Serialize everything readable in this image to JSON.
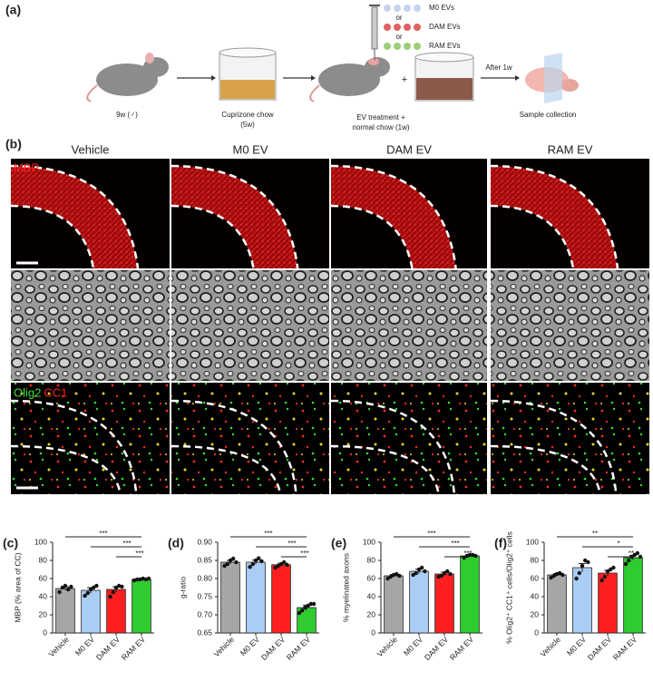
{
  "panel_a": {
    "label": "(a)",
    "ev_types": [
      "M0 EVs",
      "DAM EVs",
      "RAM EVs"
    ],
    "or": "or",
    "mouse": "9w (♂)",
    "chow": [
      "Cuprizone chow",
      "(5w)"
    ],
    "plus": "+",
    "treatment": [
      "EV treatment +",
      "normal chow (1w)"
    ],
    "interval": "After 1w",
    "collection": "Sample collection"
  },
  "panel_b": {
    "label": "(b)",
    "columns": [
      "Vehicle",
      "M0 EV",
      "DAM EV",
      "RAM EV"
    ],
    "mbp": "MBP",
    "olig2": "Olig2",
    "cc1": "CC1"
  },
  "chart_data": [
    {
      "type": "bar",
      "label": "(c)",
      "ylabel": "MBP (% area of CC)",
      "categories": [
        "Vehicle",
        "M0 EV",
        "DAM EV",
        "RAM EV"
      ],
      "colors": [
        "#a6a6a6",
        "#a9cdf5",
        "#ff1f1f",
        "#2ecc2e"
      ],
      "values": [
        49,
        47,
        48,
        59
      ],
      "errors": [
        2,
        3,
        3,
        0.6
      ],
      "points": [
        [
          45,
          50,
          52,
          48,
          51
        ],
        [
          41,
          44,
          48,
          50,
          52
        ],
        [
          40,
          45,
          50,
          52,
          51
        ],
        [
          58,
          59,
          59,
          60,
          59,
          60
        ]
      ],
      "ylim": [
        0,
        100
      ],
      "yticks": [
        0,
        20,
        40,
        60,
        80,
        100
      ],
      "comparisons": [
        {
          "groups": [
            "Vehicle",
            "RAM EV"
          ],
          "label": "***"
        },
        {
          "groups": [
            "M0 EV",
            "RAM EV"
          ],
          "label": "***"
        },
        {
          "groups": [
            "DAM EV",
            "RAM EV"
          ],
          "label": "***"
        }
      ]
    },
    {
      "type": "bar",
      "label": "(d)",
      "ylabel": "g-ratio",
      "categories": [
        "Vehicle",
        "M0 EV",
        "DAM EV",
        "RAM EV"
      ],
      "colors": [
        "#a6a6a6",
        "#a9cdf5",
        "#ff1f1f",
        "#2ecc2e"
      ],
      "values": [
        0.845,
        0.845,
        0.838,
        0.72
      ],
      "errors": [
        0.005,
        0.006,
        0.004,
        0.007
      ],
      "points": [
        [
          0.835,
          0.84,
          0.85,
          0.855,
          0.845
        ],
        [
          0.832,
          0.84,
          0.85,
          0.856,
          0.848
        ],
        [
          0.83,
          0.835,
          0.84,
          0.845,
          0.838
        ],
        [
          0.705,
          0.712,
          0.72,
          0.725,
          0.73,
          0.73
        ]
      ],
      "ylim": [
        0.65,
        0.9
      ],
      "yticks": [
        0.65,
        {
          "value": 0.7,
          "label": "0.70"
        },
        0.75,
        {
          "value": 0.8,
          "label": "0.80"
        },
        0.85,
        {
          "value": 0.9,
          "label": "0.90"
        }
      ],
      "comparisons": [
        {
          "groups": [
            "Vehicle",
            "RAM EV"
          ],
          "label": "***"
        },
        {
          "groups": [
            "M0 EV",
            "RAM EV"
          ],
          "label": "***"
        },
        {
          "groups": [
            "DAM EV",
            "RAM EV"
          ],
          "label": "***"
        }
      ]
    },
    {
      "type": "bar",
      "label": "(e)",
      "ylabel": "% myelinated axons",
      "categories": [
        "Vehicle",
        "M0 EV",
        "DAM EV",
        "RAM EV"
      ],
      "colors": [
        "#a6a6a6",
        "#a9cdf5",
        "#ff1f1f",
        "#2ecc2e"
      ],
      "values": [
        63,
        68,
        65,
        85
      ],
      "errors": [
        1.5,
        2.5,
        2,
        1
      ],
      "points": [
        [
          60,
          62,
          64,
          65,
          63
        ],
        [
          64,
          66,
          70,
          72,
          68
        ],
        [
          62,
          63,
          66,
          68,
          65
        ],
        [
          83,
          85,
          86,
          86,
          85
        ]
      ],
      "ylim": [
        0,
        100
      ],
      "yticks": [
        0,
        20,
        40,
        60,
        80,
        100
      ],
      "comparisons": [
        {
          "groups": [
            "Vehicle",
            "RAM EV"
          ],
          "label": "***"
        },
        {
          "groups": [
            "M0 EV",
            "RAM EV"
          ],
          "label": "***"
        },
        {
          "groups": [
            "DAM EV",
            "RAM EV"
          ],
          "label": "***"
        }
      ]
    },
    {
      "type": "bar",
      "label": "(f)",
      "ylabel": "% Olig2⁺ CC1⁺ cells/Olig2⁺ cells",
      "categories": [
        "Vehicle",
        "M0 EV",
        "DAM EV",
        "RAM EV"
      ],
      "colors": [
        "#a6a6a6",
        "#a9cdf5",
        "#ff1f1f",
        "#2ecc2e"
      ],
      "values": [
        64,
        72,
        66,
        83
      ],
      "errors": [
        1.5,
        4.5,
        3,
        2.5
      ],
      "points": [
        [
          61,
          63,
          65,
          66,
          64
        ],
        [
          60,
          66,
          74,
          80,
          78
        ],
        [
          58,
          62,
          68,
          70,
          72
        ],
        [
          76,
          80,
          84,
          86,
          88,
          84
        ]
      ],
      "ylim": [
        0,
        100
      ],
      "yticks": [
        0,
        20,
        40,
        60,
        80,
        100
      ],
      "comparisons": [
        {
          "groups": [
            "Vehicle",
            "RAM EV"
          ],
          "label": "**"
        },
        {
          "groups": [
            "M0 EV",
            "RAM EV"
          ],
          "label": "*"
        },
        {
          "groups": [
            "DAM EV",
            "RAM EV"
          ],
          "label": "**"
        }
      ]
    }
  ]
}
